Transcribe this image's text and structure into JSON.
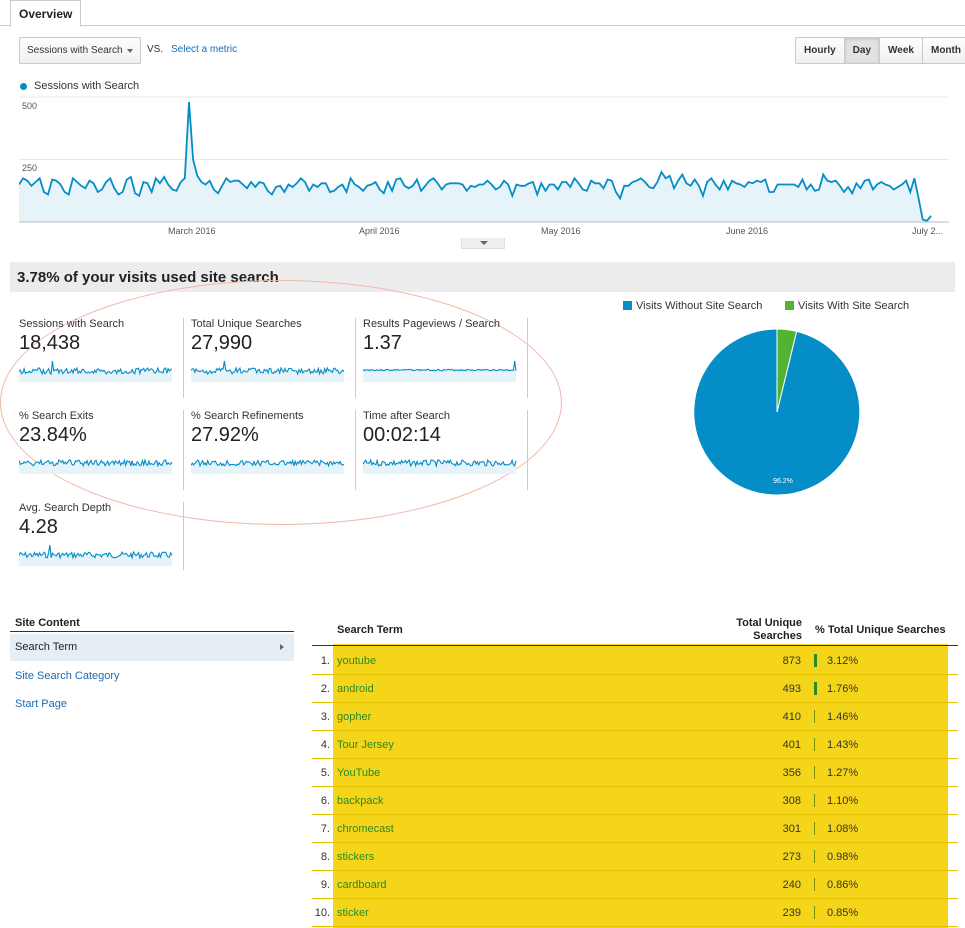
{
  "tabs": {
    "overview": "Overview"
  },
  "controls": {
    "metric_select": "Sessions with Search",
    "vs": "VS.",
    "select_metric": "Select a metric",
    "granularity": [
      "Hourly",
      "Day",
      "Week",
      "Month"
    ],
    "active_granularity": "Day"
  },
  "chart_data": {
    "type": "line",
    "title": "",
    "series": [
      {
        "name": "Sessions with Search",
        "color": "#058dc7"
      }
    ],
    "y_ticks": [
      "500",
      "250"
    ],
    "ylim": [
      0,
      500
    ],
    "x_tick_labels": [
      "March 2016",
      "April 2016",
      "May 2016",
      "June 2016",
      "July 2..."
    ],
    "values": [
      150,
      175,
      165,
      145,
      160,
      175,
      120,
      110,
      170,
      165,
      150,
      120,
      110,
      175,
      160,
      145,
      135,
      165,
      155,
      120,
      130,
      160,
      175,
      135,
      110,
      120,
      170,
      180,
      115,
      105,
      160,
      155,
      120,
      175,
      155,
      180,
      150,
      130,
      125,
      160,
      175,
      480,
      250,
      185,
      160,
      150,
      165,
      130,
      115,
      145,
      175,
      160,
      165,
      165,
      150,
      135,
      160,
      140,
      160,
      155,
      125,
      110,
      140,
      145,
      120,
      150,
      140,
      155,
      175,
      160,
      125,
      150,
      140,
      155,
      155,
      120,
      125,
      140,
      150,
      120,
      175,
      150,
      140,
      125,
      145,
      150,
      160,
      130,
      115,
      160,
      125,
      170,
      175,
      145,
      135,
      145,
      170,
      125,
      145,
      165,
      175,
      155,
      130,
      150,
      155,
      155,
      155,
      150,
      125,
      145,
      140,
      150,
      150,
      165,
      150,
      130,
      140,
      165,
      150,
      105,
      150,
      145,
      145,
      155,
      160,
      110,
      155,
      125,
      150,
      150,
      130,
      160,
      160,
      140,
      175,
      155,
      130,
      125,
      165,
      155,
      155,
      135,
      170,
      165,
      120,
      95,
      145,
      145,
      160,
      165,
      175,
      160,
      140,
      135,
      160,
      200,
      175,
      185,
      135,
      165,
      190,
      155,
      145,
      170,
      145,
      105,
      160,
      175,
      150,
      130,
      165,
      130,
      165,
      155,
      150,
      140,
      160,
      155,
      165,
      160,
      170,
      120,
      120,
      150,
      150,
      150,
      150,
      150,
      140,
      170,
      130,
      150,
      125,
      130,
      190,
      165,
      160,
      165,
      145,
      120,
      140,
      115,
      155,
      135,
      165,
      170,
      130,
      150,
      160,
      150,
      145,
      130,
      140,
      150,
      165,
      120,
      175,
      95,
      10,
      5,
      25
    ],
    "pie": {
      "type": "pie",
      "legend": [
        "Visits Without Site Search",
        "Visits With Site Search"
      ],
      "values": [
        96.2,
        3.8
      ],
      "colors": [
        "#058dc7",
        "#50b432"
      ],
      "slice_label": "96.2%"
    }
  },
  "headline": "3.78% of your visits used site search",
  "tiles": [
    {
      "label": "Sessions with Search",
      "value": "18,438"
    },
    {
      "label": "Total Unique Searches",
      "value": "27,990"
    },
    {
      "label": "Results Pageviews / Search",
      "value": "1.37"
    },
    {
      "label": "% Search Exits",
      "value": "23.84%"
    },
    {
      "label": "% Search Refinements",
      "value": "27.92%"
    },
    {
      "label": "Time after Search",
      "value": "00:02:14"
    },
    {
      "label": "Avg. Search Depth",
      "value": "4.28"
    }
  ],
  "site_content": {
    "title": "Site Content",
    "items": [
      "Search Term",
      "Site Search Category",
      "Start Page"
    ]
  },
  "table": {
    "headers": {
      "term": "Search Term",
      "total_1": "Total Unique",
      "total_2": "Searches",
      "pct": "% Total Unique Searches"
    },
    "rows": [
      {
        "n": "1.",
        "term": "youtube",
        "count": "873",
        "pct": "3.12%"
      },
      {
        "n": "2.",
        "term": "android",
        "count": "493",
        "pct": "1.76%"
      },
      {
        "n": "3.",
        "term": "gopher",
        "count": "410",
        "pct": "1.46%"
      },
      {
        "n": "4.",
        "term": "Tour Jersey",
        "count": "401",
        "pct": "1.43%"
      },
      {
        "n": "5.",
        "term": "YouTube",
        "count": "356",
        "pct": "1.27%"
      },
      {
        "n": "6.",
        "term": "backpack",
        "count": "308",
        "pct": "1.10%"
      },
      {
        "n": "7.",
        "term": "chromecast",
        "count": "301",
        "pct": "1.08%"
      },
      {
        "n": "8.",
        "term": "stickers",
        "count": "273",
        "pct": "0.98%"
      },
      {
        "n": "9.",
        "term": "cardboard",
        "count": "240",
        "pct": "0.86%"
      },
      {
        "n": "10.",
        "term": "sticker",
        "count": "239",
        "pct": "0.85%"
      }
    ]
  },
  "colors": {
    "accent": "#058dc7",
    "link": "#1a6bb5",
    "term": "#2d8a24",
    "highlight": "#f4d519",
    "pie_green": "#50b432"
  }
}
